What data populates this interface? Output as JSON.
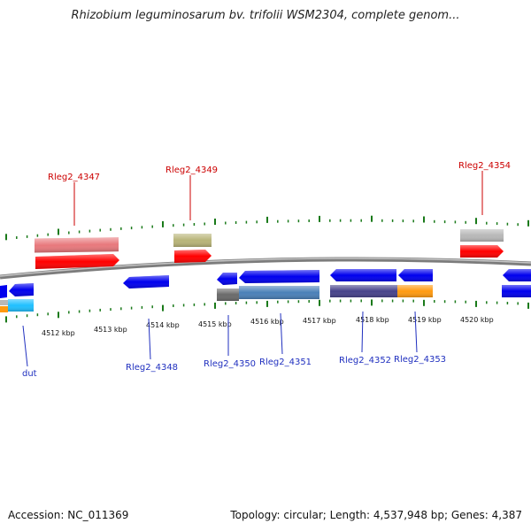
{
  "header": {
    "title": "Rhizobium leguminosarum bv. trifolii WSM2304, complete genom..."
  },
  "footer": {
    "accession": "Accession: NC_011369",
    "summary": "Topology: circular; Length: 4,537,948 bp; Genes: 4,387"
  },
  "scale": {
    "tick_labels": [
      "4512 kbp",
      "4513 kbp",
      "4514 kbp",
      "4515 kbp",
      "4516 kbp",
      "4517 kbp",
      "4518 kbp",
      "4519 kbp",
      "4520 kbp"
    ]
  },
  "genes": {
    "labels_top": [
      "Rleg2_4347",
      "Rleg2_4349",
      "Rleg2_4354"
    ],
    "labels_bottom": [
      "dut",
      "Rleg2_4348",
      "Rleg2_4350",
      "Rleg2_4351",
      "Rleg2_4352",
      "Rleg2_4353"
    ]
  },
  "colors": {
    "tick": "#1a7a1a",
    "backbone": "#888888",
    "label_top": "#cc0000",
    "label_bottom": "#1f2fbf",
    "gene_red": "#ff0000",
    "gene_pink": "#e8787c",
    "gene_olive": "#b8b478",
    "gene_grey": "#b8b8b8",
    "gene_blue": "#0000ee",
    "gene_steel": "#4a80b8",
    "gene_purple": "#46428a",
    "gene_orange": "#ff9a10",
    "gene_cyan": "#20c0ff"
  }
}
